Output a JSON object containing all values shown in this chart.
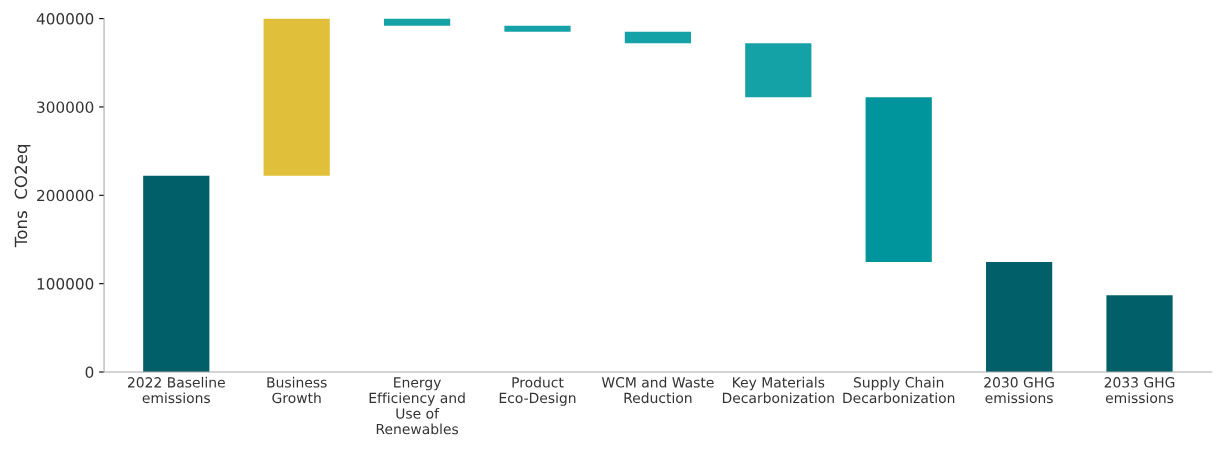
{
  "chart_data": {
    "type": "bar",
    "ylabel": "Tons  CO2eq",
    "categories": [
      "2022 Baseline\nemissions",
      "Business\nGrowth",
      "Energy\nEfficiency and\nUse of\nRenewables",
      "Product\nEco-Design",
      "WCM and Waste\nReduction",
      "Key Materials\nDecarbonization",
      "Supply Chain\nDecarbonization",
      "2030 GHG\nemissions",
      "2033 GHG\nemissions"
    ],
    "base": [
      0,
      222000,
      400000,
      392000,
      385000,
      372000,
      311000,
      0,
      0
    ],
    "values": [
      222000,
      178000,
      -8000,
      -7000,
      -13000,
      -61000,
      -186500,
      124500,
      87000
    ],
    "colors": [
      "#005f69",
      "#e0c03a",
      "#15a2a7",
      "#15a2a7",
      "#15a2a7",
      "#15a2a7",
      "#00949c",
      "#005f69",
      "#005f69"
    ],
    "ylim": [
      0,
      400000
    ],
    "yticks": [
      0,
      100000,
      200000,
      300000,
      400000
    ],
    "grid": false,
    "legend": false
  }
}
